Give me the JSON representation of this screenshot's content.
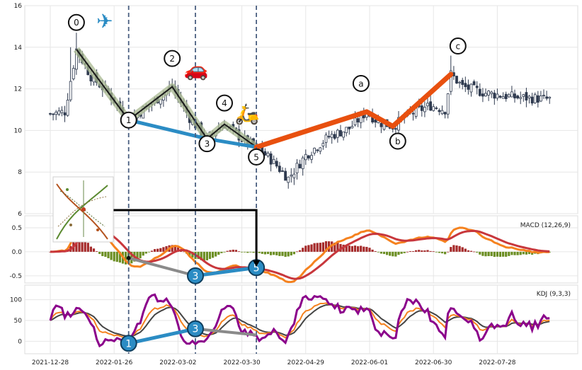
{
  "chart_data": [
    {
      "type": "candlestick",
      "panel": "price",
      "ylim": [
        6,
        16
      ],
      "yticks": [
        "6",
        "8",
        "10",
        "12",
        "14",
        "16"
      ],
      "grid": true,
      "colors": {
        "up": "#ffffff",
        "down": "#2f3a4f",
        "wick": "#2f3a4f"
      },
      "wave_labels": [
        {
          "label": "0",
          "x": 9,
          "y": 13.9
        },
        {
          "label": "1",
          "x": 27,
          "y": 10.5
        },
        {
          "label": "2",
          "x": 42,
          "y": 12.1
        },
        {
          "label": "3",
          "x": 54,
          "y": 9.6
        },
        {
          "label": "4",
          "x": 60,
          "y": 10.3
        },
        {
          "label": "5",
          "x": 71,
          "y": 9.2
        },
        {
          "label": "a",
          "x": 109,
          "y": 10.9
        },
        {
          "label": "b",
          "x": 118,
          "y": 10.2
        },
        {
          "label": "c",
          "x": 138,
          "y": 12.7
        }
      ],
      "impulse_path": {
        "points": [
          0,
          1,
          2,
          3,
          4,
          5
        ],
        "color": "#1a1a1a",
        "band_color": "#a8b890"
      },
      "blue_trendline": {
        "points": [
          1,
          3,
          5
        ],
        "color": "#2b8cc4"
      },
      "correction_line": {
        "from": 5,
        "through": [
          "a",
          "b"
        ],
        "to": "c",
        "color": "#e8500f"
      },
      "emoji": [
        {
          "icon": "airplane",
          "glyph": "✈",
          "near": "0"
        },
        {
          "icon": "car",
          "glyph": "🚗",
          "near": "2"
        },
        {
          "icon": "scooter",
          "glyph": "🛵",
          "near": "4"
        }
      ],
      "vlines": [
        27,
        50,
        71
      ]
    },
    {
      "type": "line",
      "panel": "macd",
      "label": "MACD (12,26,9)",
      "ylim": [
        -0.65,
        0.75
      ],
      "yticks": [
        "0.5",
        "0.0",
        "-0.5"
      ],
      "series": [
        {
          "key": "dif",
          "color": "#f5821f"
        },
        {
          "key": "dea",
          "color": "#c8373c"
        },
        {
          "key": "hist",
          "pos_color": "#a52a2a",
          "neg_color": "#6b8e23"
        }
      ],
      "markers": [
        {
          "label": "",
          "x": 27,
          "y": -0.13
        },
        {
          "label": "3",
          "x": 50,
          "y": -0.5
        },
        {
          "label": "5",
          "x": 71,
          "y": -0.33
        }
      ]
    },
    {
      "type": "line",
      "panel": "kdj",
      "label": "KDJ (9,3,3)",
      "ylim": [
        -30,
        135
      ],
      "yticks": [
        "100",
        "50",
        "0"
      ],
      "series": [
        {
          "key": "K",
          "color": "#f5821f"
        },
        {
          "key": "D",
          "color": "#444444"
        },
        {
          "key": "J",
          "color": "#8b008b"
        }
      ],
      "markers": [
        {
          "label": "1",
          "x": 27,
          "y": -5
        },
        {
          "label": "3",
          "x": 50,
          "y": 30
        }
      ]
    }
  ],
  "x_axis": {
    "ticks": [
      {
        "i": 0,
        "label": "2021-12-28"
      },
      {
        "i": 22,
        "label": "2022-01-26"
      },
      {
        "i": 44,
        "label": "2022-03-02"
      },
      {
        "i": 66,
        "label": "2022-03-30"
      },
      {
        "i": 88,
        "label": "2022-04-29"
      },
      {
        "i": 110,
        "label": "2022-06-01"
      },
      {
        "i": 132,
        "label": "2022-06-30"
      },
      {
        "i": 154,
        "label": "2022-07-28"
      }
    ],
    "count": 173
  },
  "inset": {
    "icon": "elliott-wave-thumbnail"
  }
}
